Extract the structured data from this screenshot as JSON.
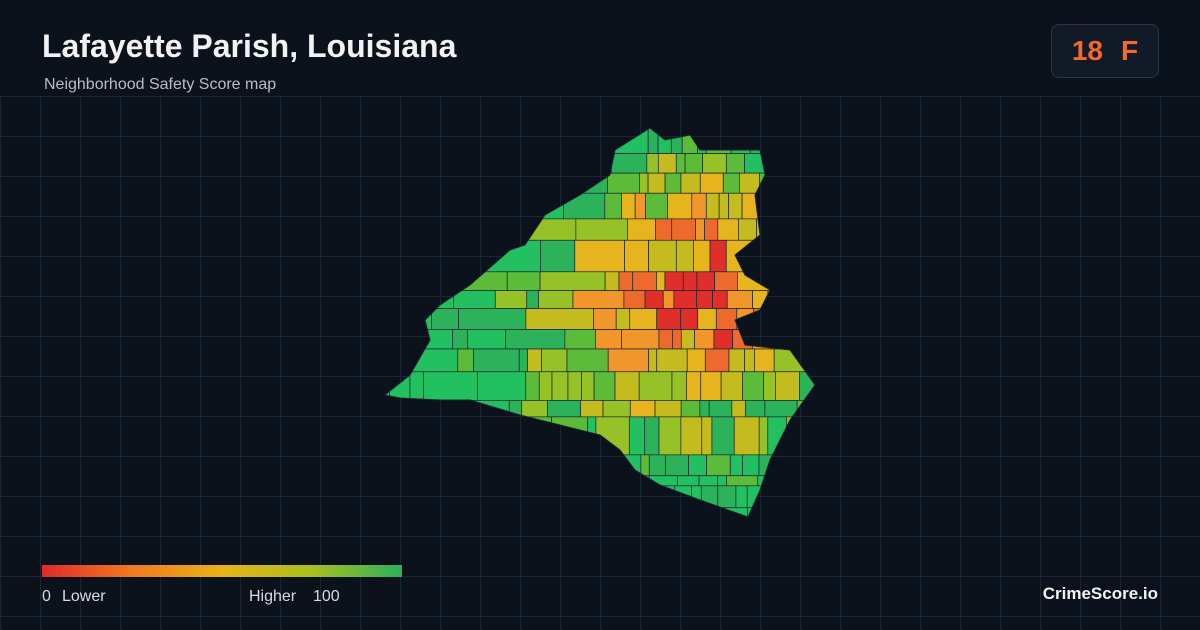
{
  "header": {
    "title": "Lafayette Parish, Louisiana",
    "subtitle": "Neighborhood Safety Score map"
  },
  "score": {
    "value": "18",
    "grade": "F"
  },
  "legend": {
    "min": "0",
    "min_label": "Lower",
    "max_label": "Higher",
    "max": "100"
  },
  "brand": "CrimeScore.io"
}
